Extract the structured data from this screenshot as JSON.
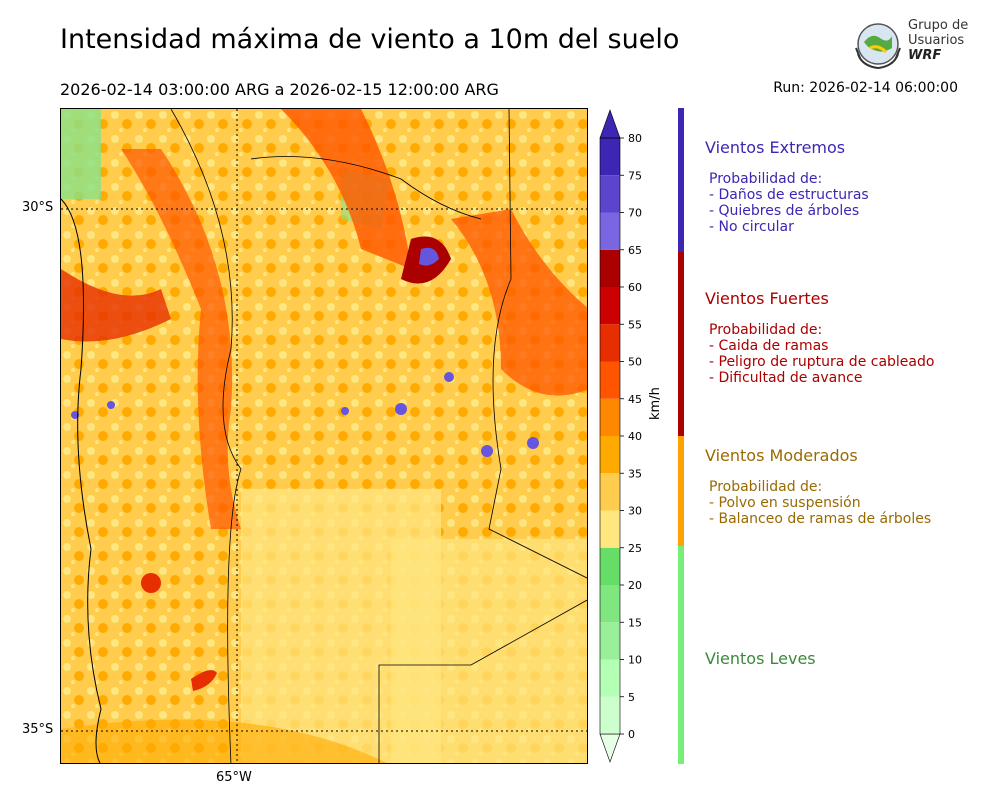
{
  "header": {
    "title": "Intensidad máxima de viento a 10m del suelo",
    "period": "2026-02-14 03:00:00 ARG  a  2026-02-15 12:00:00 ARG",
    "run": "Run: 2026-02-14 06:00:00"
  },
  "logo": {
    "line1": "Grupo de",
    "line2": "Usuarios",
    "line3": "WRF"
  },
  "map": {
    "lat_labels": [
      "30°S",
      "35°S"
    ],
    "lon_labels": [
      "65°W"
    ]
  },
  "colorbar": {
    "unit": "km/h",
    "ticks": [
      "0",
      "5",
      "10",
      "15",
      "20",
      "25",
      "30",
      "35",
      "40",
      "45",
      "50",
      "55",
      "60",
      "65",
      "70",
      "75",
      "80"
    ],
    "colors": [
      "#e6ffe6",
      "#ccffcc",
      "#b3ffb3",
      "#99f099",
      "#80e680",
      "#66dd66",
      "#ffe680",
      "#ffcc4d",
      "#ffaa00",
      "#ff8800",
      "#ff5500",
      "#e62e00",
      "#cc0000",
      "#aa0000",
      "#7a66e0",
      "#5c44cc",
      "#3d26b3"
    ]
  },
  "legend": [
    {
      "title": "Vientos Extremos",
      "color": "#3d26b3",
      "items": [
        "Probabilidad de:",
        "- Daños de estructuras",
        "- Quiebres de árboles",
        "- No circular"
      ]
    },
    {
      "title": "Vientos Fuertes",
      "color": "#aa0000",
      "items": [
        "Probabilidad de:",
        "- Caida de ramas",
        "- Peligro de ruptura de cableado",
        "- Dificultad de avance"
      ]
    },
    {
      "title": "Vientos Moderados",
      "color": "#ffa200",
      "text_color": "#9a6a00",
      "items": [
        "Probabilidad de:",
        "- Polvo en suspensión",
        "- Balanceo de ramas de árboles"
      ]
    },
    {
      "title": "Vientos Leves",
      "color": "#77ee77",
      "text_color": "#3a8a3a",
      "items": []
    }
  ]
}
